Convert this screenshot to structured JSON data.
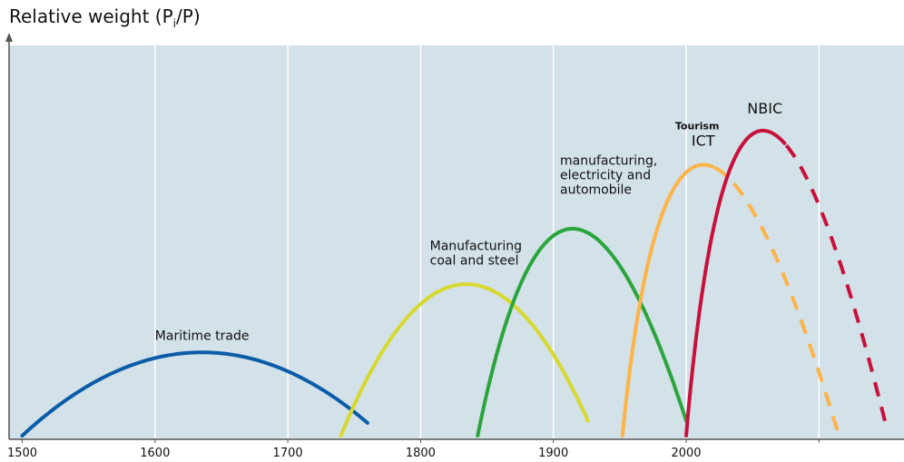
{
  "chart_data": {
    "type": "line",
    "ylabel_main": "Relative weight (P",
    "ylabel_sub": "i",
    "ylabel_end": "/P)",
    "xlabel": "",
    "xlim": [
      1490,
      2160
    ],
    "ylim": [
      0,
      100
    ],
    "x_ticks": [
      1500,
      1600,
      1700,
      1800,
      1900,
      2000
    ],
    "grid": true,
    "background": "#d3e1e8",
    "series": [
      {
        "name": "Maritime trade",
        "label_lines": [
          "Maritime trade"
        ],
        "color": "#0a5ca8",
        "x": [
          1500,
          1630,
          1760
        ],
        "y": [
          0,
          19.5,
          3
        ],
        "dashed_from": null,
        "label_pos": {
          "x": 1600,
          "y": 22.5
        }
      },
      {
        "name": "Manufacturing coal and steel",
        "label_lines": [
          "Manufacturing",
          "coal and steel"
        ],
        "color": "#d6d92e",
        "x": [
          1740,
          1832,
          1926
        ],
        "y": [
          0,
          35.5,
          3.5
        ],
        "dashed_from": null,
        "label_pos": {
          "x": 1807,
          "y": 43.5
        }
      },
      {
        "name": "manufacturing, electricity and automobile",
        "label_lines": [
          "manufacturing,",
          "electricity and",
          "automobile"
        ],
        "color": "#2aa53c",
        "x": [
          1843,
          1913,
          2000
        ],
        "y": [
          0,
          48.5,
          3.5
        ],
        "dashed_from": null,
        "label_pos": {
          "x": 1905,
          "y": 63.5
        }
      },
      {
        "name": "ICT",
        "label_lines": [
          "ICT"
        ],
        "label_small": "Tourism",
        "color": "#fdb347",
        "x": [
          1952,
          2013,
          2115
        ],
        "y": [
          0,
          63.5,
          0
        ],
        "dashed_from": 2020,
        "label_pos": {
          "x": 2004,
          "y": 68
        }
      },
      {
        "name": "NBIC",
        "label_lines": [
          "NBIC"
        ],
        "color": "#c8103c",
        "x": [
          2000,
          2057,
          2150
        ],
        "y": [
          0,
          71.5,
          3
        ],
        "dashed_from": 2075,
        "label_pos": {
          "x": 2046,
          "y": 75.5
        }
      }
    ]
  }
}
